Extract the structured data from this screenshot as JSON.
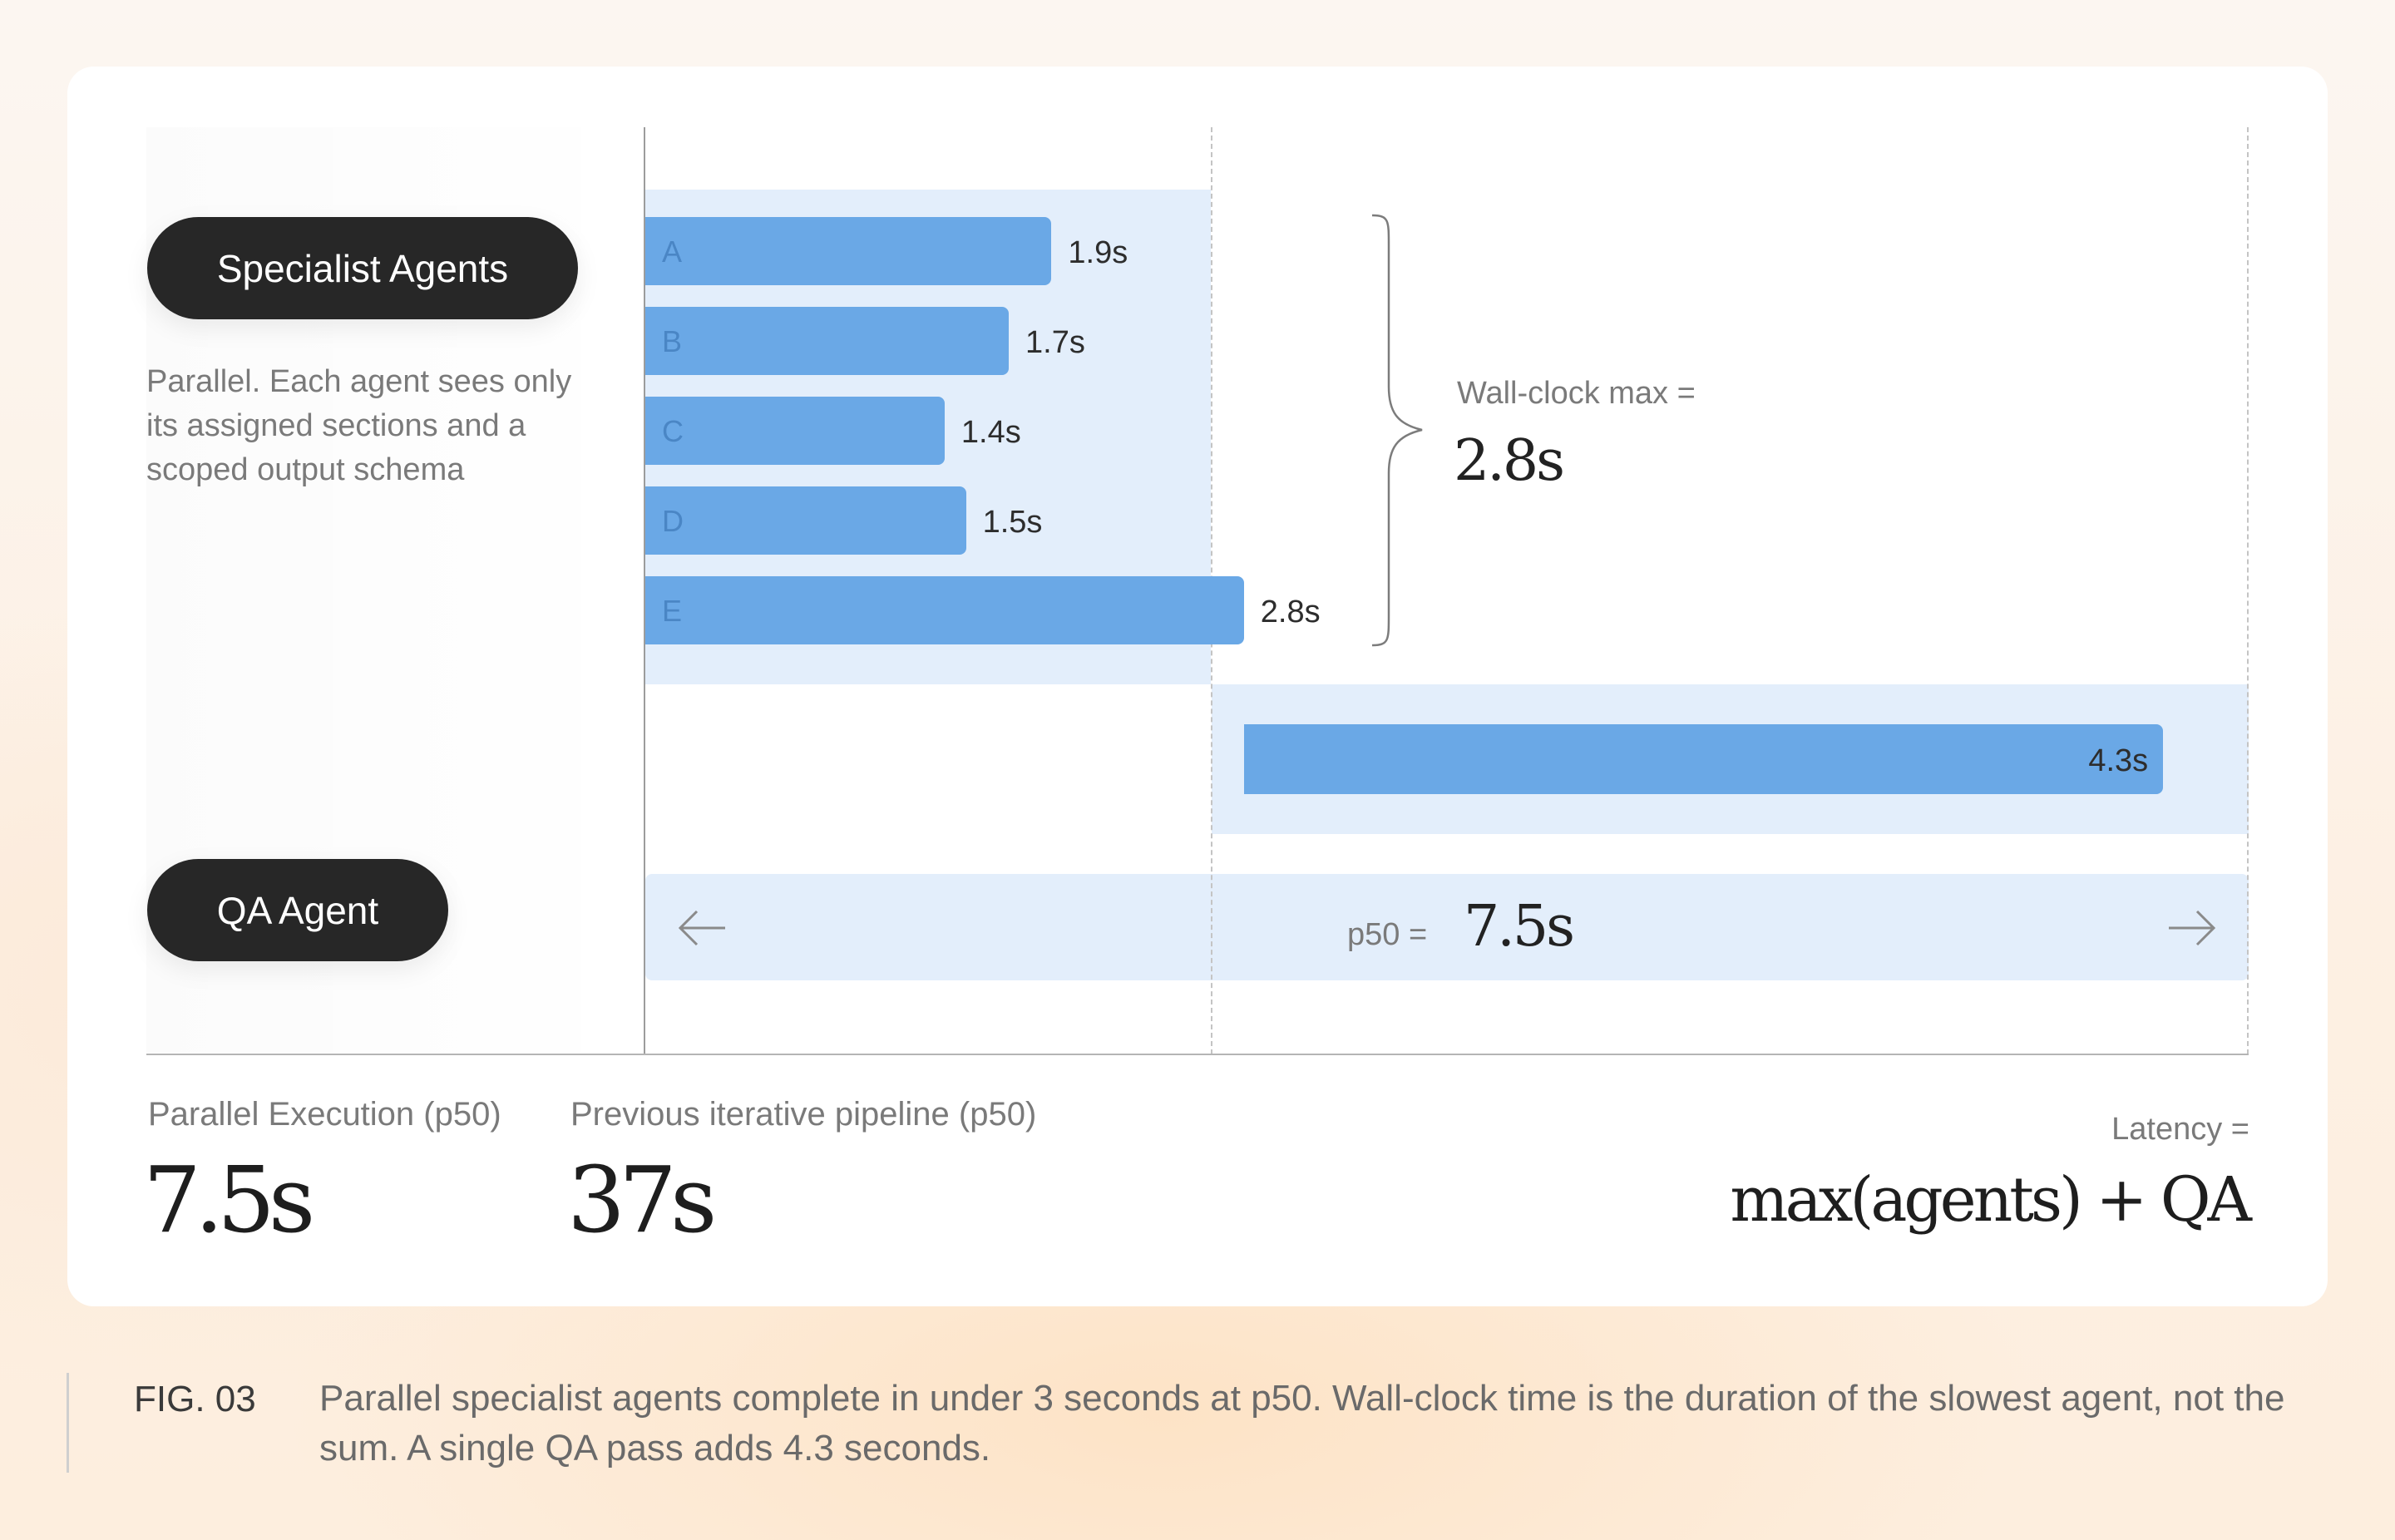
{
  "labels": {
    "specialist": "Specialist Agents",
    "specialist_desc": "Parallel. Each agent sees only its assigned sections and a scoped output schema",
    "qa": "QA Agent"
  },
  "chart_data": {
    "type": "bar",
    "orientation": "horizontal",
    "x_unit": "s",
    "xlim": [
      0,
      7.5
    ],
    "categories": [
      "A",
      "B",
      "C",
      "D",
      "E"
    ],
    "series": [
      {
        "values": [
          1.9,
          1.7,
          1.4,
          1.5,
          2.8
        ],
        "value_labels": [
          "1.9s",
          "1.7s",
          "1.4s",
          "1.5s",
          "2.8s"
        ],
        "start": 0
      }
    ],
    "qa_bar": {
      "start": 2.8,
      "value": 4.3,
      "value_label": "4.3s"
    },
    "annotations": {
      "wall_clock_label": "Wall-clock max =",
      "wall_clock_value": "2.8s",
      "p50_label": "p50 =",
      "p50_value": "7.5s"
    },
    "colors": {
      "bar": "#6aa8e6",
      "band": "#e3eefb",
      "letter": "#4a86c5"
    }
  },
  "stats": {
    "parallel_label": "Parallel Execution (p50)",
    "parallel_value": "7.5s",
    "previous_label": "Previous iterative pipeline (p50)",
    "previous_value": "37s",
    "latency_label": "Latency =",
    "latency_formula": "max(agents) + QA"
  },
  "figure": {
    "tag": "FIG. 03",
    "caption": "Parallel specialist agents complete in under 3 seconds at p50. Wall-clock time is the duration of the slowest agent, not the sum. A single QA pass adds 4.3 seconds."
  }
}
